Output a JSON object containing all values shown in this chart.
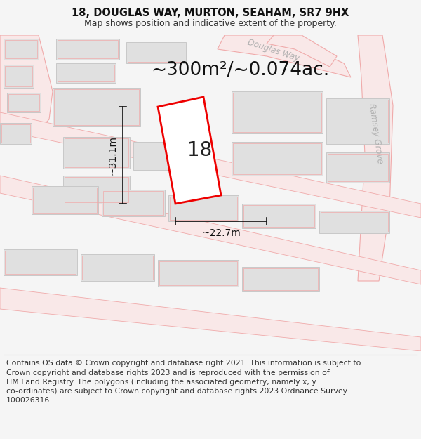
{
  "title_line1": "18, DOUGLAS WAY, MURTON, SEAHAM, SR7 9HX",
  "title_line2": "Map shows position and indicative extent of the property.",
  "area_text": "~300m²/~0.074ac.",
  "label_number": "18",
  "dim_width": "~22.7m",
  "dim_height": "~31.1m",
  "footer_text": "Contains OS data © Crown copyright and database right 2021. This information is subject to Crown copyright and database rights 2023 and is reproduced with the permission of HM Land Registry. The polygons (including the associated geometry, namely x, y co-ordinates) are subject to Crown copyright and database rights 2023 Ordnance Survey 100026316.",
  "bg_color": "#f5f5f5",
  "map_bg": "#ffffff",
  "road_outline_color": "#f0aaaa",
  "road_fill_color": "#f9e8e8",
  "building_fill": "#e0e0e0",
  "building_outline": "#c8c8c8",
  "sub_building_outline": "#f0aaaa",
  "red_polygon_color": "#ee0000",
  "street_label_color": "#b0b0b0",
  "dim_color": "#111111",
  "footer_line_color": "#cccccc",
  "title_fontsize": 10.5,
  "subtitle_fontsize": 9,
  "area_fontsize": 19,
  "number_fontsize": 20,
  "dim_fontsize": 10,
  "footer_fontsize": 7.8,
  "street_fontsize": 8.5
}
